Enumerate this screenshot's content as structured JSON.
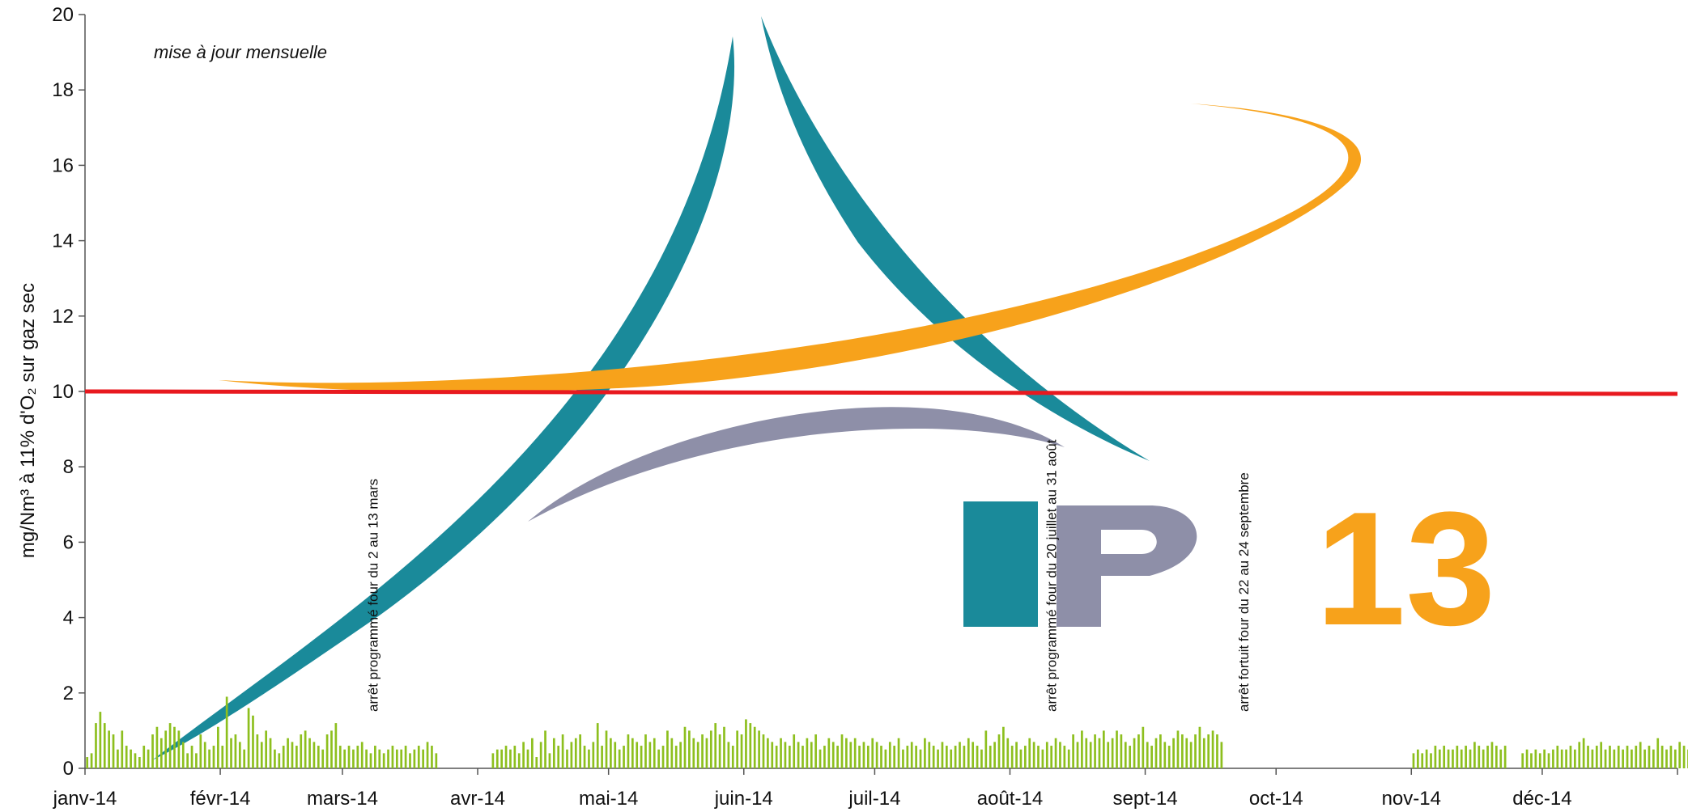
{
  "chart_data": {
    "type": "bar",
    "subtitle": "mise à jour mensuelle",
    "ylabel": "mg/Nm³ à 11% d'O₂ sur gaz sec",
    "ylim": [
      0,
      20
    ],
    "yticks": [
      0,
      2,
      4,
      6,
      8,
      10,
      12,
      14,
      16,
      18,
      20
    ],
    "x_tick_labels": [
      "janv-14",
      "févr-14",
      "mars-14",
      "avr-14",
      "mai-14",
      "juin-14",
      "juil-14",
      "août-14",
      "sept-14",
      "oct-14",
      "nov-14",
      "déc-14"
    ],
    "x_start": "2014-01-01",
    "x_end": "2014-12-31",
    "bar_color": "#8dbf1e",
    "limit_line": {
      "value": 10,
      "color": "#e8191f"
    },
    "gaps": [
      {
        "from": "2014-03-02",
        "to": "2014-03-13",
        "note": "arrêt programmé four du 2 au 13 mars"
      },
      {
        "from": "2014-07-20",
        "to": "2014-08-31",
        "note": "arrêt programmé four du 20 juillet au 31 août"
      },
      {
        "from": "2014-09-22",
        "to": "2014-09-24",
        "note": "arrêt fortuit four du 22 au 24 septembre"
      }
    ],
    "series": [
      {
        "values": [
          0.3,
          0.4,
          1.2,
          1.5,
          1.2,
          1.0,
          0.9,
          0.5,
          1.0,
          0.6,
          0.5,
          0.4,
          0.3,
          0.6,
          0.5,
          0.9,
          1.1,
          0.8,
          1.0,
          1.2,
          1.1,
          1.0,
          0.7,
          0.4,
          0.6,
          0.4,
          0.9,
          0.7,
          0.5,
          0.6,
          1.1,
          0.6,
          1.9,
          0.8,
          0.9,
          0.7,
          0.5,
          1.6,
          1.4,
          0.9,
          0.7,
          1.0,
          0.8,
          0.5,
          0.4,
          0.6,
          0.8,
          0.7,
          0.6,
          0.9,
          1.0,
          0.8,
          0.7,
          0.6,
          0.5,
          0.9,
          1.0,
          1.2,
          0.6,
          0.5,
          0.6,
          0.5,
          0.6,
          0.7,
          0.5,
          0.4,
          0.6,
          0.5,
          0.4,
          0.5,
          0.6,
          0.5,
          0.5,
          0.6,
          0.4,
          0.5,
          0.6,
          0.5,
          0.7,
          0.6,
          0.4,
          null,
          null,
          null,
          null,
          null,
          null,
          null,
          null,
          null,
          null,
          null,
          null,
          0.4,
          0.5,
          0.5,
          0.6,
          0.5,
          0.6,
          0.4,
          0.7,
          0.5,
          0.8,
          0.3,
          0.7,
          1.0,
          0.4,
          0.8,
          0.6,
          0.9,
          0.5,
          0.7,
          0.8,
          0.9,
          0.6,
          0.5,
          0.7,
          1.2,
          0.6,
          1.0,
          0.8,
          0.7,
          0.5,
          0.6,
          0.9,
          0.8,
          0.7,
          0.6,
          0.9,
          0.7,
          0.8,
          0.5,
          0.6,
          1.0,
          0.8,
          0.6,
          0.7,
          1.1,
          1.0,
          0.8,
          0.7,
          0.9,
          0.8,
          1.0,
          1.2,
          0.9,
          1.1,
          0.7,
          0.6,
          1.0,
          0.9,
          1.3,
          1.2,
          1.1,
          1.0,
          0.9,
          0.8,
          0.7,
          0.6,
          0.8,
          0.7,
          0.6,
          0.9,
          0.7,
          0.6,
          0.8,
          0.7,
          0.9,
          0.5,
          0.6,
          0.8,
          0.7,
          0.6,
          0.9,
          0.8,
          0.7,
          0.8,
          0.6,
          0.7,
          0.6,
          0.8,
          0.7,
          0.6,
          0.5,
          0.7,
          0.6,
          0.8,
          0.5,
          0.6,
          0.7,
          0.6,
          0.5,
          0.8,
          0.7,
          0.6,
          0.5,
          0.7,
          0.6,
          0.5,
          0.6,
          0.7,
          0.6,
          0.8,
          0.7,
          0.6,
          0.5,
          1.0,
          0.6,
          0.7,
          0.9,
          1.1,
          0.8,
          0.6,
          0.7,
          0.5,
          0.6,
          0.8,
          0.7,
          0.6,
          0.5,
          0.7,
          0.6,
          0.8,
          0.7,
          0.6,
          0.5,
          0.9,
          0.7,
          1.0,
          0.8,
          0.7,
          0.9,
          0.8,
          1.0,
          0.7,
          0.8,
          1.0,
          0.9,
          0.7,
          0.6,
          0.8,
          0.9,
          1.1,
          0.7,
          0.6,
          0.8,
          0.9,
          0.7,
          0.6,
          0.8,
          1.0,
          0.9,
          0.8,
          0.7,
          0.9,
          1.1,
          0.8,
          0.9,
          1.0,
          0.9,
          0.7,
          null,
          null,
          null,
          null,
          null,
          null,
          null,
          null,
          null,
          null,
          null,
          null,
          null,
          null,
          null,
          null,
          null,
          null,
          null,
          null,
          null,
          null,
          null,
          null,
          null,
          null,
          null,
          null,
          null,
          null,
          null,
          null,
          null,
          null,
          null,
          null,
          null,
          null,
          null,
          null,
          null,
          null,
          null,
          0.4,
          0.5,
          0.4,
          0.5,
          0.4,
          0.6,
          0.5,
          0.6,
          0.5,
          0.5,
          0.6,
          0.5,
          0.6,
          0.5,
          0.7,
          0.6,
          0.5,
          0.6,
          0.7,
          0.6,
          0.5,
          0.6,
          null,
          null,
          null,
          0.4,
          0.5,
          0.4,
          0.5,
          0.4,
          0.5,
          0.4,
          0.5,
          0.6,
          0.5,
          0.5,
          0.6,
          0.5,
          0.7,
          0.8,
          0.6,
          0.5,
          0.6,
          0.7,
          0.5,
          0.6,
          0.5,
          0.6,
          0.5,
          0.6,
          0.5,
          0.6,
          0.7,
          0.5,
          0.6,
          0.5,
          0.8,
          0.6,
          0.5,
          0.6,
          0.5,
          0.7,
          0.6,
          0.5,
          0.6,
          0.5,
          0.6,
          0.7,
          0.6,
          0.5,
          0.6,
          0.5,
          1.1,
          0.7,
          0.6,
          0.5,
          0.6,
          0.7,
          0.9,
          0.6,
          0.7,
          0.8,
          0.6,
          0.7,
          1.0,
          0.7,
          0.6,
          0.5,
          0.7,
          0.6,
          0.5,
          0.6,
          0.7,
          0.6,
          0.5,
          0.7,
          0.6,
          0.8,
          0.9,
          1.0,
          1.3,
          1.2,
          1.1,
          0.9,
          0.8,
          0.7,
          0.6,
          0.8,
          0.9,
          0.8,
          0.7,
          0.6,
          0.5,
          0.6,
          0.7,
          0.6,
          0.5,
          0.6,
          0.7,
          0.5,
          0.6,
          0.5,
          0.4,
          0.5,
          0.6,
          0.5,
          0.7,
          0.6,
          0.5,
          0.6,
          0.5,
          0.4,
          0.5,
          0.6,
          0.5,
          0.4,
          0.6,
          0.5,
          0.7,
          0.6,
          0.5,
          0.4,
          0.5,
          0.6,
          0.5,
          0.4,
          0.5,
          0.6,
          0.5,
          0.4
        ]
      }
    ],
    "watermark": {
      "text": "IP13",
      "colors": {
        "teal": "#1a8a9a",
        "orange": "#f7a21b",
        "grey": "#8e8fa8"
      }
    }
  }
}
